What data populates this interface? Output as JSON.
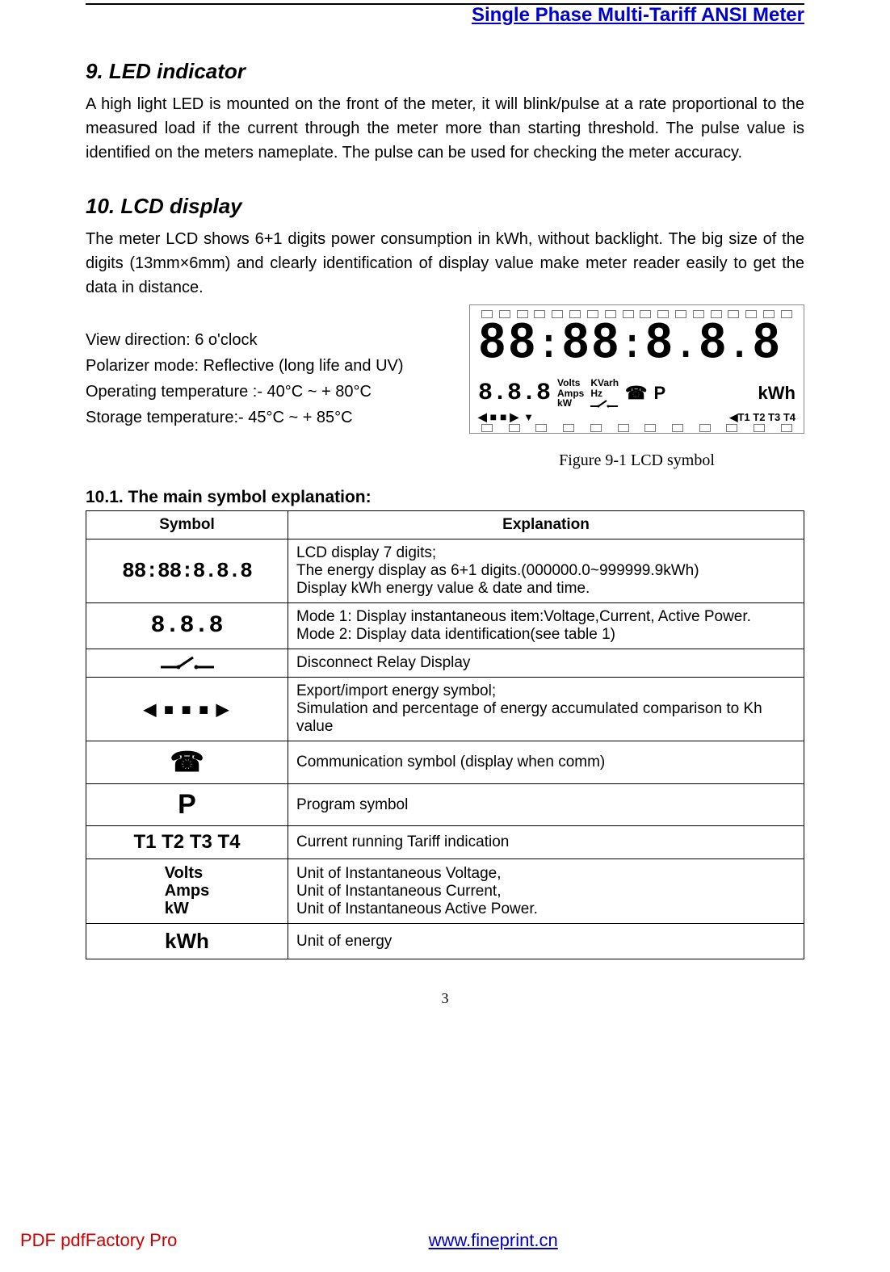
{
  "header": {
    "title": "Single Phase Multi-Tariff ANSI Meter"
  },
  "section9": {
    "heading": "9.   LED indicator",
    "body": "A high light LED is mounted on the front of the meter, it will blink/pulse at a rate proportional to the measured load if the current through the meter more than starting threshold. The pulse value is identified on the meters nameplate. The pulse can be used for checking the meter accuracy."
  },
  "section10": {
    "heading": "10. LCD display",
    "body": "The meter LCD shows 6+1 digits power consumption in kWh, without backlight. The big size of the digits (13mm×6mm) and clearly identification of display value make meter reader easily to get the data in distance.",
    "specs": {
      "view_direction": "View direction: 6 o'clock",
      "polarizer": "Polarizer mode: Reflective (long life and UV)",
      "op_temp": "Operating temperature :- 40°C ~ + 80°C",
      "storage_temp": "Storage temperature:- 45°C ~ + 85°C"
    },
    "figure_caption": "Figure 9-1 LCD symbol",
    "lcd": {
      "row2_labels_col1": [
        "Volts",
        "Amps",
        "kW"
      ],
      "row2_labels_col2": [
        "KVarh",
        "Hz"
      ],
      "kwh": "kWh",
      "comm_glyph": "☎",
      "prog_glyph": "P",
      "tariffs": "T1 T2 T3 T4",
      "arrow_left": "◀",
      "arrow_down": "▼",
      "relay_glyph": "⟜⟍⟞"
    }
  },
  "table": {
    "heading": "10.1. The main symbol explanation:",
    "columns": [
      "Symbol",
      "Explanation"
    ],
    "rows": [
      {
        "symbol_kind": "digits7",
        "symbol_text": "88:88:8.8.8",
        "explanation": "LCD display 7 digits;\nThe energy display as 6+1 digits.(000000.0~999999.9kWh)\nDisplay kWh energy value & date and time.",
        "font_size": 26
      },
      {
        "symbol_kind": "digits3",
        "symbol_text": "8.8.8",
        "explanation": "Mode 1: Display instantaneous item:Voltage,Current, Active Power.\nMode 2: Display data identification(see table 1)",
        "font_size": 30
      },
      {
        "symbol_kind": "relay",
        "symbol_text": "",
        "explanation": "Disconnect Relay Display"
      },
      {
        "symbol_kind": "exportimport",
        "symbol_text": "◀ ■ ■ ■ ▶",
        "explanation": "Export/import energy symbol;\nSimulation and percentage of energy accumulated comparison to Kh value"
      },
      {
        "symbol_kind": "comm",
        "symbol_text": "☎",
        "explanation": "   Communication symbol (display when comm)",
        "font_size": 34
      },
      {
        "symbol_kind": "prog",
        "symbol_text": "P",
        "explanation": "   Program symbol",
        "font_size": 34
      },
      {
        "symbol_kind": "tariff",
        "symbol_text": "T1 T2 T3 T4",
        "explanation": "Current running Tariff indication",
        "font_size": 24
      },
      {
        "symbol_kind": "units",
        "symbol_text": "Volts\nAmps\nkW",
        "explanation": "Unit of Instantaneous Voltage,\nUnit of Instantaneous Current,\nUnit of Instantaneous Active Power.",
        "font_size": 20
      },
      {
        "symbol_kind": "kwh",
        "symbol_text": "kWh",
        "explanation": "Unit of energy",
        "font_size": 26
      }
    ]
  },
  "page_number": "3",
  "footer": {
    "left": "PDF      pdfFactory Pro",
    "link_text": "www.fineprint.cn"
  },
  "colors": {
    "header_blue": "#0000cc",
    "footer_red": "#cc0000",
    "border": "#000000",
    "tick_border": "#888888"
  }
}
